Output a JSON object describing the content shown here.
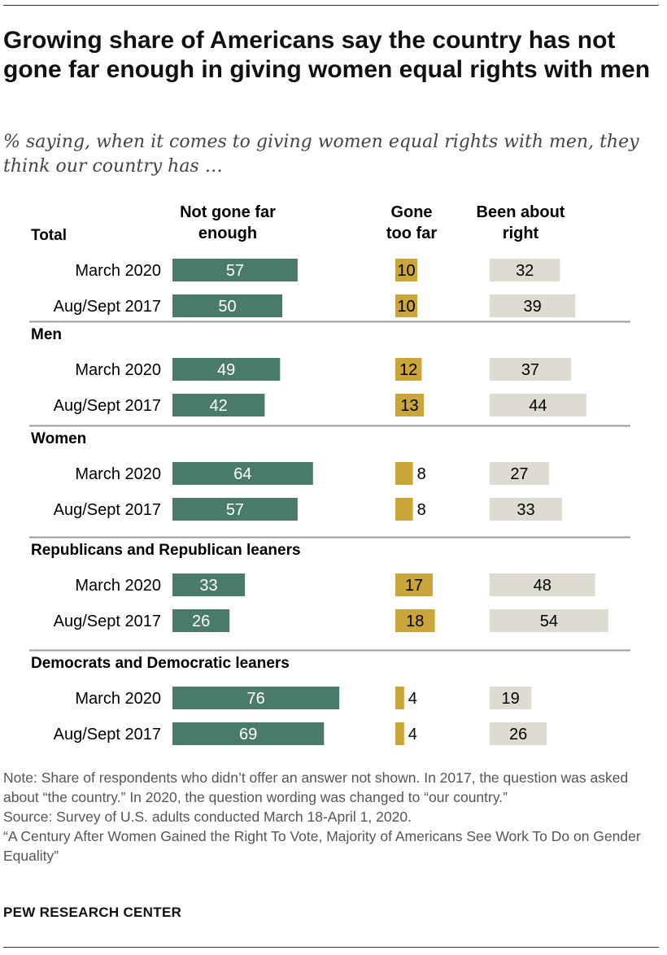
{
  "title": "Growing share of Americans say the country has not gone far enough in giving women equal rights with men",
  "subtitle": "% saying, when it comes to giving women equal rights with men, they think our country has …",
  "columns": {
    "not_far_enough": "Not gone far enough",
    "too_far": "Gone too far",
    "about_right": "Been about right"
  },
  "colors": {
    "not_far_enough": "#4a7a6c",
    "too_far": "#c9a53a",
    "about_right": "#dedbd0",
    "divider": "#999999"
  },
  "chart_data": {
    "type": "bar",
    "orientation": "horizontal",
    "series_names": [
      "Not gone far enough",
      "Gone too far",
      "Been about right"
    ],
    "groups": [
      {
        "name": "Total",
        "rows": [
          {
            "label": "March 2020",
            "values": [
              57,
              10,
              32
            ]
          },
          {
            "label": "Aug/Sept 2017",
            "values": [
              50,
              10,
              39
            ]
          }
        ]
      },
      {
        "name": "Men",
        "rows": [
          {
            "label": "March 2020",
            "values": [
              49,
              12,
              37
            ]
          },
          {
            "label": "Aug/Sept 2017",
            "values": [
              42,
              13,
              44
            ]
          }
        ]
      },
      {
        "name": "Women",
        "rows": [
          {
            "label": "March 2020",
            "values": [
              64,
              8,
              27
            ]
          },
          {
            "label": "Aug/Sept 2017",
            "values": [
              57,
              8,
              33
            ]
          }
        ]
      },
      {
        "name": "Republicans and Republican leaners",
        "rows": [
          {
            "label": "March 2020",
            "values": [
              33,
              17,
              48
            ]
          },
          {
            "label": "Aug/Sept 2017",
            "values": [
              26,
              18,
              54
            ]
          }
        ]
      },
      {
        "name": "Democrats and Democratic leaners",
        "rows": [
          {
            "label": "March 2020",
            "values": [
              76,
              4,
              19
            ]
          },
          {
            "label": "Aug/Sept 2017",
            "values": [
              69,
              4,
              26
            ]
          }
        ]
      }
    ]
  },
  "notes": {
    "note": "Note: Share of respondents who didn’t offer an answer not shown. In 2017, the question was asked about “the country.” In 2020, the question wording was changed to “our country.”",
    "source": "Source: Survey of U.S. adults conducted March 18-April 1, 2020.",
    "report": "“A Century After Women Gained the Right To Vote, Majority of Americans See Work To Do on Gender Equality”"
  },
  "brand": "PEW RESEARCH CENTER"
}
